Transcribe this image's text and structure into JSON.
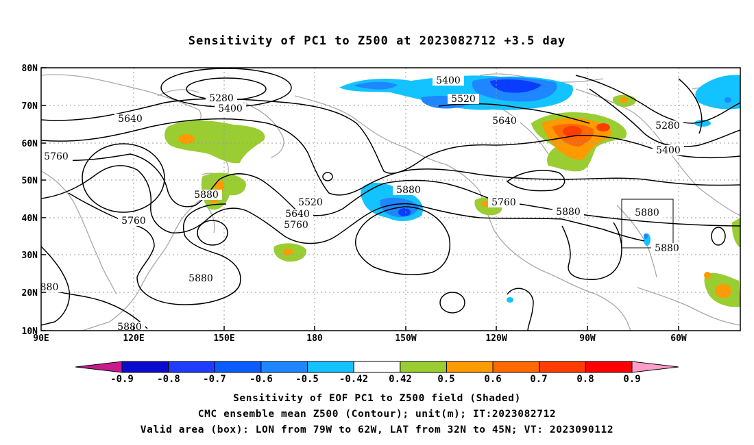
{
  "title": "Sensitivity of PC1 to Z500 at 2023082712 +3.5 day",
  "lat_labels": [
    "80N",
    "70N",
    "60N",
    "50N",
    "40N",
    "30N",
    "20N",
    "10N"
  ],
  "lon_labels": [
    "90E",
    "120E",
    "150E",
    "180",
    "150W",
    "120W",
    "90W",
    "60W"
  ],
  "colorbar": {
    "labels": [
      "-0.9",
      "-0.8",
      "-0.7",
      "-0.6",
      "-0.5",
      "-0.42",
      "0.42",
      "0.5",
      "0.6",
      "0.7",
      "0.8",
      "0.9"
    ],
    "colors": [
      "#c81a8c",
      "#0b0bd0",
      "#1f3cff",
      "#0a5cff",
      "#1e86ff",
      "#12c3ff",
      "#ffffff",
      "#9acd32",
      "#ff9a00",
      "#ff6a00",
      "#ff3d00",
      "#ff0000",
      "#ff9ec8"
    ]
  },
  "contour_labels": [
    "5280",
    "5400",
    "5640",
    "5760",
    "5880",
    "5520",
    "5400",
    "5520",
    "5640",
    "5880",
    "5760",
    "5880",
    "5280",
    "5400",
    "5640",
    "5760",
    "5880",
    "5760",
    "5880",
    "5880",
    "880",
    "5880"
  ],
  "shading": {
    "positive_green": "#9acd32",
    "positive_orange": "#ff9a00",
    "positive_red": "#ff3d00",
    "negative_light": "#12c3ff",
    "negative_mid": "#1e86ff",
    "negative_dark": "#0a3cff"
  },
  "captions": {
    "line1": "Sensitivity of EOF PC1 to Z500 field (Shaded)",
    "line2": "CMC ensemble mean Z500 (Contour); unit(m); IT:2023082712",
    "line3": "Valid area (box): LON from 79W to 62W, LAT from 32N to 45N; VT: 2023090112"
  }
}
